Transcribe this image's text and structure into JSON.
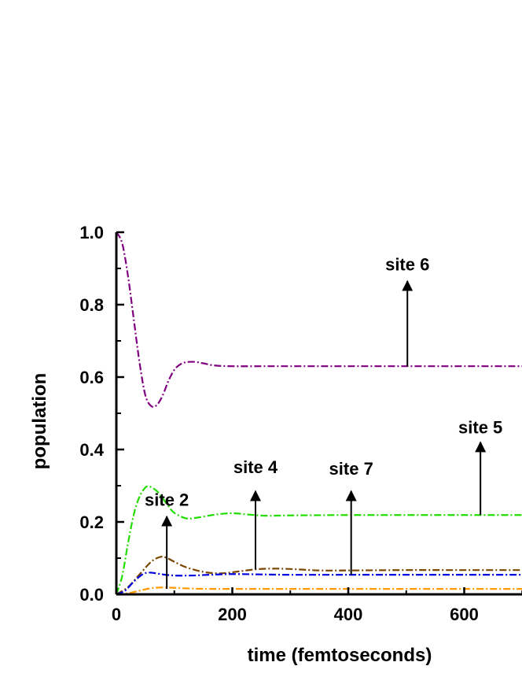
{
  "chart_data": {
    "type": "line",
    "xlabel": "time (femtoseconds)",
    "ylabel": "population",
    "xlim": [
      0,
      700
    ],
    "ylim": [
      0,
      1.0
    ],
    "x_ticks": [
      0,
      200,
      400,
      600
    ],
    "x_tick_labels": [
      "0",
      "200",
      "400",
      "600"
    ],
    "y_ticks": [
      0.0,
      0.2,
      0.4,
      0.6,
      0.8,
      1.0
    ],
    "y_tick_labels": [
      "0.0",
      "0.2",
      "0.4",
      "0.6",
      "0.8",
      "1.0"
    ],
    "grid": false,
    "legend": "none",
    "series": [
      {
        "key": "site6",
        "color": "#800080",
        "dash": "dashdot",
        "x": [
          0,
          10,
          20,
          30,
          40,
          50,
          60,
          70,
          80,
          90,
          100,
          110,
          120,
          135,
          150,
          170,
          200,
          250,
          300,
          400,
          500,
          600,
          700
        ],
        "y": [
          1.0,
          0.97,
          0.88,
          0.76,
          0.64,
          0.55,
          0.52,
          0.523,
          0.55,
          0.59,
          0.62,
          0.635,
          0.641,
          0.642,
          0.638,
          0.632,
          0.63,
          0.63,
          0.63,
          0.63,
          0.63,
          0.63,
          0.63
        ]
      },
      {
        "key": "site5",
        "color": "#22dd00",
        "dash": "dashdot",
        "x": [
          0,
          10,
          20,
          30,
          40,
          50,
          55,
          60,
          70,
          80,
          90,
          100,
          120,
          140,
          170,
          200,
          230,
          260,
          300,
          400,
          500,
          600,
          700
        ],
        "y": [
          0.0,
          0.05,
          0.14,
          0.22,
          0.27,
          0.295,
          0.298,
          0.296,
          0.285,
          0.265,
          0.243,
          0.225,
          0.21,
          0.212,
          0.22,
          0.224,
          0.22,
          0.217,
          0.218,
          0.219,
          0.219,
          0.219,
          0.219
        ]
      },
      {
        "key": "site4",
        "color": "#7a4500",
        "dash": "dashdot",
        "x": [
          0,
          20,
          40,
          60,
          75,
          85,
          100,
          120,
          150,
          180,
          210,
          240,
          270,
          300,
          350,
          400,
          500,
          600,
          700
        ],
        "y": [
          0.0,
          0.02,
          0.055,
          0.09,
          0.103,
          0.102,
          0.09,
          0.075,
          0.062,
          0.058,
          0.063,
          0.069,
          0.071,
          0.07,
          0.066,
          0.066,
          0.067,
          0.067,
          0.067
        ]
      },
      {
        "key": "site7",
        "color": "#0000e0",
        "dash": "dashdot",
        "x": [
          0,
          15,
          30,
          45,
          55,
          65,
          80,
          100,
          130,
          160,
          200,
          250,
          300,
          400,
          500,
          600,
          700
        ],
        "y": [
          0.0,
          0.01,
          0.035,
          0.055,
          0.06,
          0.059,
          0.055,
          0.052,
          0.052,
          0.054,
          0.056,
          0.055,
          0.054,
          0.054,
          0.054,
          0.054,
          0.054
        ]
      },
      {
        "key": "site2",
        "color": "#ff9900",
        "dash": "dashdot",
        "x": [
          0,
          20,
          40,
          60,
          80,
          100,
          130,
          160,
          200,
          300,
          400,
          500,
          600,
          700
        ],
        "y": [
          0.0,
          0.003,
          0.01,
          0.017,
          0.019,
          0.018,
          0.016,
          0.015,
          0.015,
          0.015,
          0.015,
          0.015,
          0.015,
          0.015
        ]
      }
    ],
    "annotations": [
      {
        "key": "site6",
        "text": "site 6",
        "arrow_x": 502,
        "arrow_from_y": 0.63,
        "arrow_to_y": 0.865,
        "label_y": 0.895
      },
      {
        "key": "site5",
        "text": "site 5",
        "arrow_x": 628,
        "arrow_from_y": 0.219,
        "arrow_to_y": 0.42,
        "label_y": 0.445
      },
      {
        "key": "site4",
        "text": "site 4",
        "arrow_x": 240,
        "arrow_from_y": 0.069,
        "arrow_to_y": 0.285,
        "label_y": 0.335
      },
      {
        "key": "site7",
        "text": "site 7",
        "arrow_x": 405,
        "arrow_from_y": 0.054,
        "arrow_to_y": 0.285,
        "label_y": 0.33
      },
      {
        "key": "site2",
        "text": "site 2",
        "arrow_x": 87,
        "arrow_from_y": 0.015,
        "arrow_to_y": 0.215,
        "label_y": 0.245
      }
    ]
  }
}
